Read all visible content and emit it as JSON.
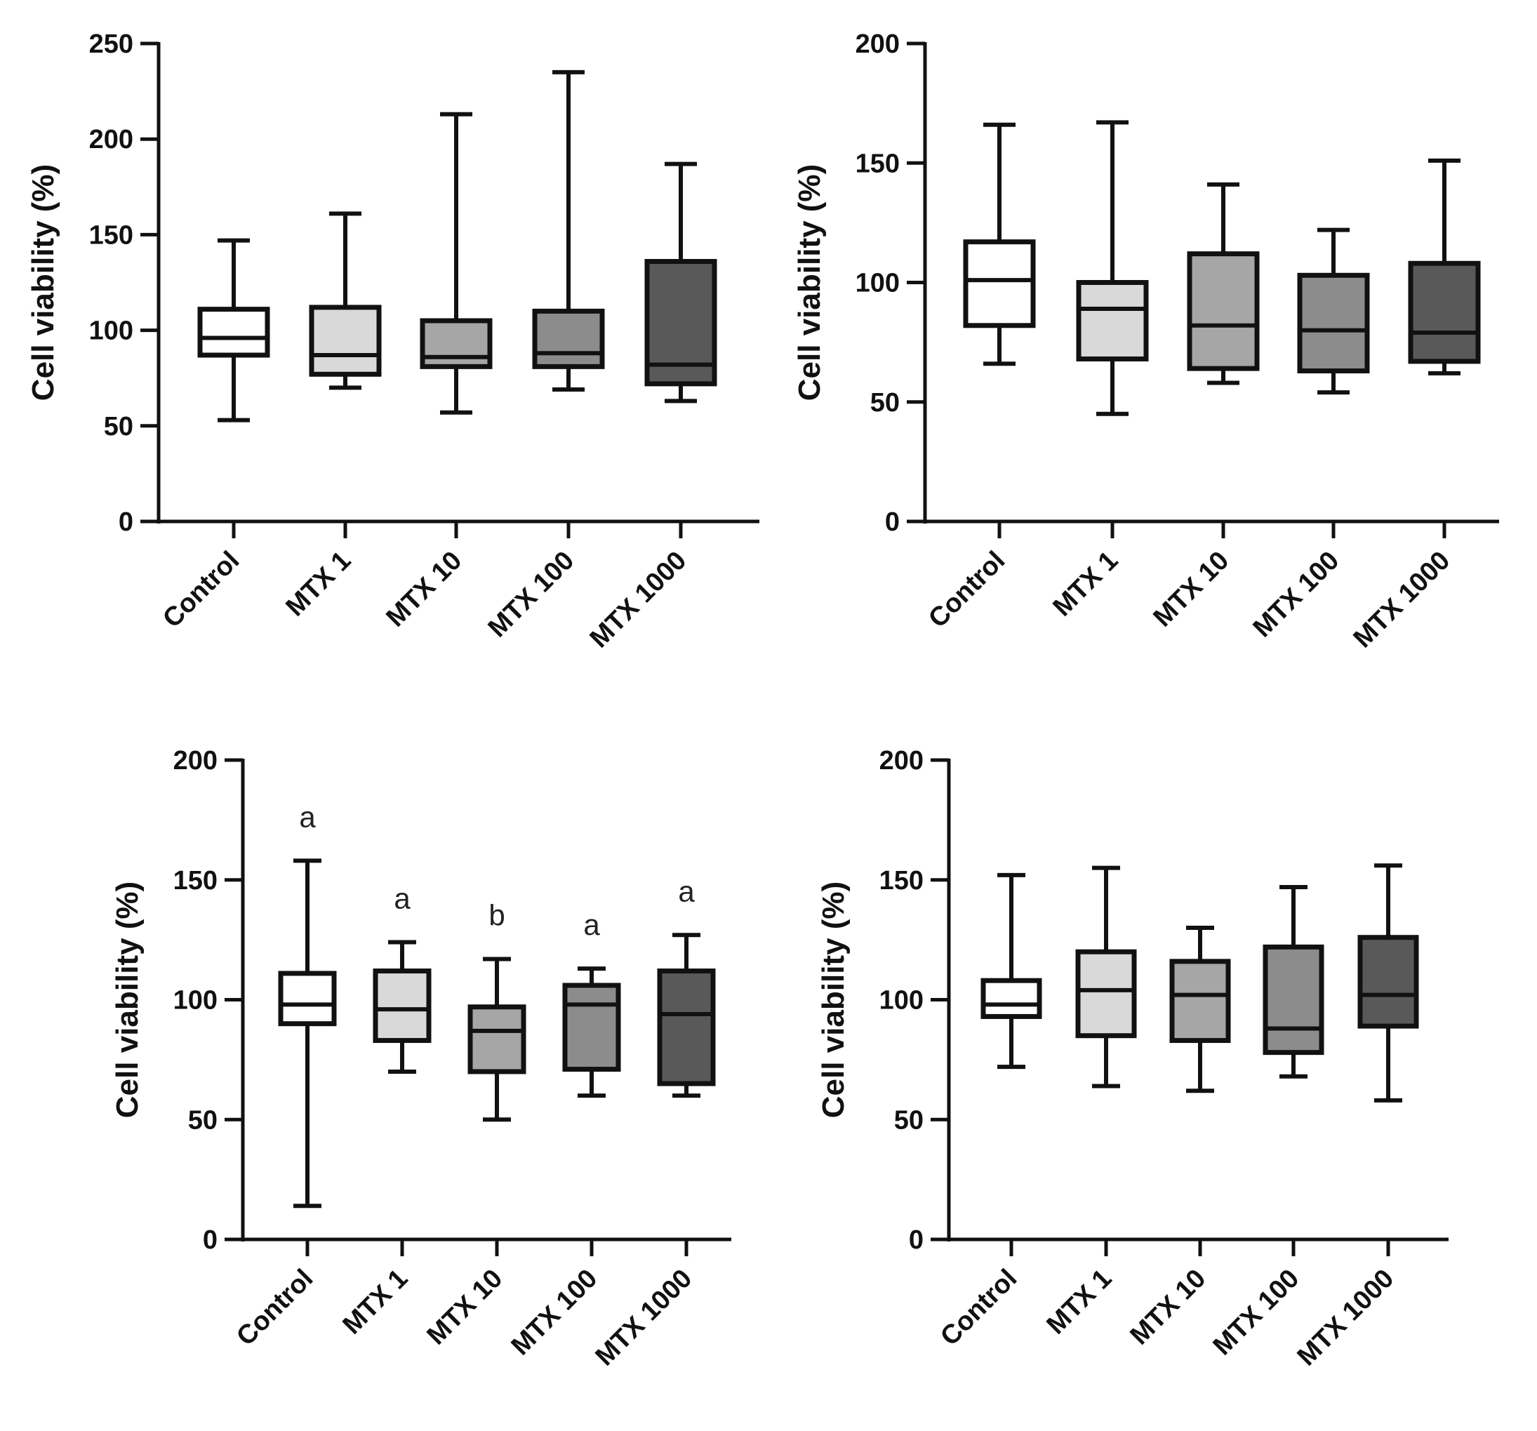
{
  "colors": {
    "ink": "#111111",
    "control": "#ffffff",
    "mtx1": "#d9d9d9",
    "mtx10": "#a6a6a6",
    "mtx100": "#8c8c8c",
    "mtx1000": "#595959"
  },
  "chart_data": [
    {
      "type": "box",
      "panel": "top-left",
      "title": "",
      "xlabel": "",
      "ylabel": "Cell viability (%)",
      "ylim": [
        0,
        250
      ],
      "yticks": [
        0,
        50,
        100,
        150,
        200,
        250
      ],
      "categories": [
        "Control",
        "MTX 1",
        "MTX 10",
        "MTX 100",
        "MTX 1000"
      ],
      "boxes": [
        {
          "min": 53,
          "q1": 87,
          "median": 96,
          "q3": 111,
          "max": 147
        },
        {
          "min": 70,
          "q1": 77,
          "median": 87,
          "q3": 112,
          "max": 161
        },
        {
          "min": 57,
          "q1": 81,
          "median": 86,
          "q3": 105,
          "max": 213
        },
        {
          "min": 69,
          "q1": 81,
          "median": 88,
          "q3": 110,
          "max": 235
        },
        {
          "min": 63,
          "q1": 72,
          "median": 82,
          "q3": 136,
          "max": 187
        }
      ],
      "annotations": []
    },
    {
      "type": "box",
      "panel": "top-right",
      "title": "",
      "xlabel": "",
      "ylabel": "Cell viability (%)",
      "ylim": [
        0,
        200
      ],
      "yticks": [
        0,
        50,
        100,
        150,
        200
      ],
      "categories": [
        "Control",
        "MTX 1",
        "MTX 10",
        "MTX 100",
        "MTX 1000"
      ],
      "boxes": [
        {
          "min": 66,
          "q1": 82,
          "median": 101,
          "q3": 117,
          "max": 166
        },
        {
          "min": 45,
          "q1": 68,
          "median": 89,
          "q3": 100,
          "max": 167
        },
        {
          "min": 58,
          "q1": 64,
          "median": 82,
          "q3": 112,
          "max": 141
        },
        {
          "min": 54,
          "q1": 63,
          "median": 80,
          "q3": 103,
          "max": 122
        },
        {
          "min": 62,
          "q1": 67,
          "median": 79,
          "q3": 108,
          "max": 151
        }
      ],
      "annotations": []
    },
    {
      "type": "box",
      "panel": "bottom-left",
      "title": "",
      "xlabel": "",
      "ylabel": "Cell viability (%)",
      "ylim": [
        0,
        200
      ],
      "yticks": [
        0,
        50,
        100,
        150,
        200
      ],
      "categories": [
        "Control",
        "MTX 1",
        "MTX 10",
        "MTX 100",
        "MTX 1000"
      ],
      "boxes": [
        {
          "min": 14,
          "q1": 90,
          "median": 98,
          "q3": 111,
          "max": 158
        },
        {
          "min": 70,
          "q1": 83,
          "median": 96,
          "q3": 112,
          "max": 124
        },
        {
          "min": 50,
          "q1": 70,
          "median": 87,
          "q3": 97,
          "max": 117
        },
        {
          "min": 60,
          "q1": 71,
          "median": 98,
          "q3": 106,
          "max": 113
        },
        {
          "min": 60,
          "q1": 65,
          "median": 94,
          "q3": 112,
          "max": 127
        }
      ],
      "annotations": [
        "a",
        "a",
        "b",
        "a",
        "a"
      ]
    },
    {
      "type": "box",
      "panel": "bottom-right",
      "title": "",
      "xlabel": "",
      "ylabel": "Cell viability (%)",
      "ylim": [
        0,
        200
      ],
      "yticks": [
        0,
        50,
        100,
        150,
        200
      ],
      "categories": [
        "Control",
        "MTX 1",
        "MTX 10",
        "MTX 100",
        "MTX 1000"
      ],
      "boxes": [
        {
          "min": 72,
          "q1": 93,
          "median": 98,
          "q3": 108,
          "max": 152
        },
        {
          "min": 64,
          "q1": 85,
          "median": 104,
          "q3": 120,
          "max": 155
        },
        {
          "min": 62,
          "q1": 83,
          "median": 102,
          "q3": 116,
          "max": 130
        },
        {
          "min": 68,
          "q1": 78,
          "median": 88,
          "q3": 122,
          "max": 147
        },
        {
          "min": 58,
          "q1": 89,
          "median": 102,
          "q3": 126,
          "max": 156
        }
      ],
      "annotations": []
    }
  ]
}
